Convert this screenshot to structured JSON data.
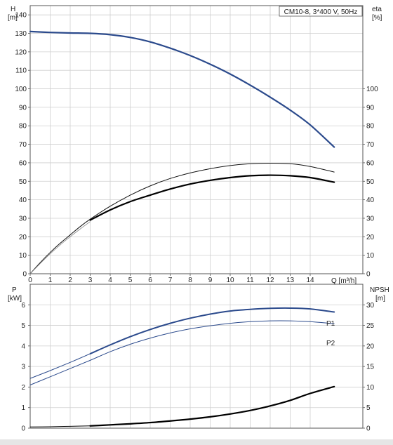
{
  "chart_data": [
    {
      "type": "line",
      "panel": "upper",
      "title": "CM10-8, 3*400 V, 50Hz",
      "ylabel_left": "H",
      "ylabel_left_unit": "[m]",
      "ylabel_right": "eta",
      "ylabel_right_unit": "[%]",
      "xlabel": "Q [m³/h]",
      "xlim": [
        0,
        15.5
      ],
      "ylim_left": [
        0,
        145
      ],
      "ylim_right": [
        0,
        145
      ],
      "x_ticks": [
        "0",
        "1",
        "2",
        "3",
        "4",
        "5",
        "6",
        "7",
        "8",
        "9",
        "10",
        "11",
        "12",
        "13",
        "14"
      ],
      "y_left_ticks": [
        "0",
        "10",
        "20",
        "30",
        "40",
        "50",
        "60",
        "70",
        "80",
        "90",
        "100",
        "110",
        "120",
        "130",
        "140"
      ],
      "y_right_ticks": [
        "0",
        "10",
        "20",
        "30",
        "40",
        "50",
        "60",
        "70",
        "80",
        "90",
        "100"
      ],
      "grid": true,
      "series": [
        {
          "color": "#2b4a8c",
          "width": 2.2,
          "axis": "left",
          "x": [
            0,
            1,
            2,
            3,
            4,
            5,
            6,
            7,
            8,
            9,
            10,
            11,
            12,
            13,
            14,
            15.2
          ],
          "y": [
            131,
            130.5,
            130.2,
            130,
            129.3,
            127.8,
            125.4,
            122,
            118,
            113.3,
            108,
            102,
            95.5,
            88.5,
            80.5,
            68.5
          ]
        },
        {
          "color": "#111111",
          "width": 1.0,
          "axis": "right",
          "x": [
            0,
            0.5,
            1,
            1.5,
            2,
            2.5,
            3,
            4,
            5,
            6,
            7,
            8,
            9,
            10,
            11,
            12,
            13,
            14,
            15.2
          ],
          "y": [
            0,
            6,
            11.5,
            16.5,
            21,
            25.5,
            29.5,
            36.5,
            42.5,
            47.5,
            51.5,
            54.5,
            56.8,
            58.5,
            59.5,
            59.8,
            59.5,
            58,
            55
          ]
        },
        {
          "color": "#888888",
          "width": 0.8,
          "axis": "right",
          "x": [
            0,
            0.5,
            1,
            1.5,
            2,
            2.5,
            3
          ],
          "y": [
            0,
            5.5,
            10.8,
            15.6,
            20,
            24.2,
            28.2
          ]
        },
        {
          "color": "#000000",
          "width": 2.2,
          "axis": "right",
          "x": [
            3,
            4,
            5,
            6,
            7,
            8,
            9,
            10,
            11,
            12,
            13,
            14,
            15.2
          ],
          "y": [
            29,
            34.5,
            39,
            42.5,
            45.8,
            48.5,
            50.5,
            52,
            53,
            53.3,
            53,
            52,
            49.5
          ]
        }
      ]
    },
    {
      "type": "line",
      "panel": "lower",
      "ylabel_left": "P",
      "ylabel_left_unit": "[kW]",
      "ylabel_right": "NPSH",
      "ylabel_right_unit": "[m]",
      "xlim": [
        0,
        15.5
      ],
      "ylim_left": [
        0,
        7
      ],
      "ylim_right": [
        0,
        35
      ],
      "y_left_ticks": [
        "0",
        "1",
        "2",
        "3",
        "4",
        "5",
        "6"
      ],
      "y_right_ticks": [
        "0",
        "5",
        "10",
        "15",
        "20",
        "25",
        "30"
      ],
      "grid": true,
      "series": [
        {
          "name": "P1",
          "color": "#2b4a8c",
          "width": 2.0,
          "axis": "left",
          "x": [
            3,
            4,
            5,
            6,
            7,
            8,
            9,
            10,
            11,
            12,
            13,
            14,
            15.2
          ],
          "y": [
            3.62,
            4.05,
            4.45,
            4.8,
            5.1,
            5.35,
            5.55,
            5.7,
            5.78,
            5.83,
            5.84,
            5.8,
            5.65
          ]
        },
        {
          "color": "#2b4a8c",
          "width": 1.0,
          "axis": "left",
          "x": [
            0,
            1,
            2,
            3
          ],
          "y": [
            2.42,
            2.8,
            3.2,
            3.62
          ]
        },
        {
          "name": "P2",
          "color": "#2b4a8c",
          "width": 1.0,
          "axis": "left",
          "x": [
            0,
            1,
            2,
            3,
            4,
            5,
            6,
            7,
            8,
            9,
            10,
            11,
            12,
            13,
            14,
            15.2
          ],
          "y": [
            2.1,
            2.5,
            2.9,
            3.3,
            3.72,
            4.08,
            4.38,
            4.63,
            4.83,
            4.98,
            5.1,
            5.18,
            5.22,
            5.22,
            5.18,
            5.08
          ]
        },
        {
          "color": "#000000",
          "width": 1.0,
          "axis": "right",
          "x": [
            0,
            1,
            2,
            3
          ],
          "y": [
            0.3,
            0.35,
            0.45,
            0.55
          ]
        },
        {
          "color": "#000000",
          "width": 2.2,
          "axis": "right",
          "x": [
            3,
            4,
            5,
            6,
            7,
            8,
            9,
            10,
            11,
            12,
            13,
            14,
            15.2
          ],
          "y": [
            0.55,
            0.8,
            1.05,
            1.35,
            1.75,
            2.2,
            2.75,
            3.45,
            4.3,
            5.4,
            6.75,
            8.45,
            10.1
          ]
        }
      ]
    }
  ]
}
